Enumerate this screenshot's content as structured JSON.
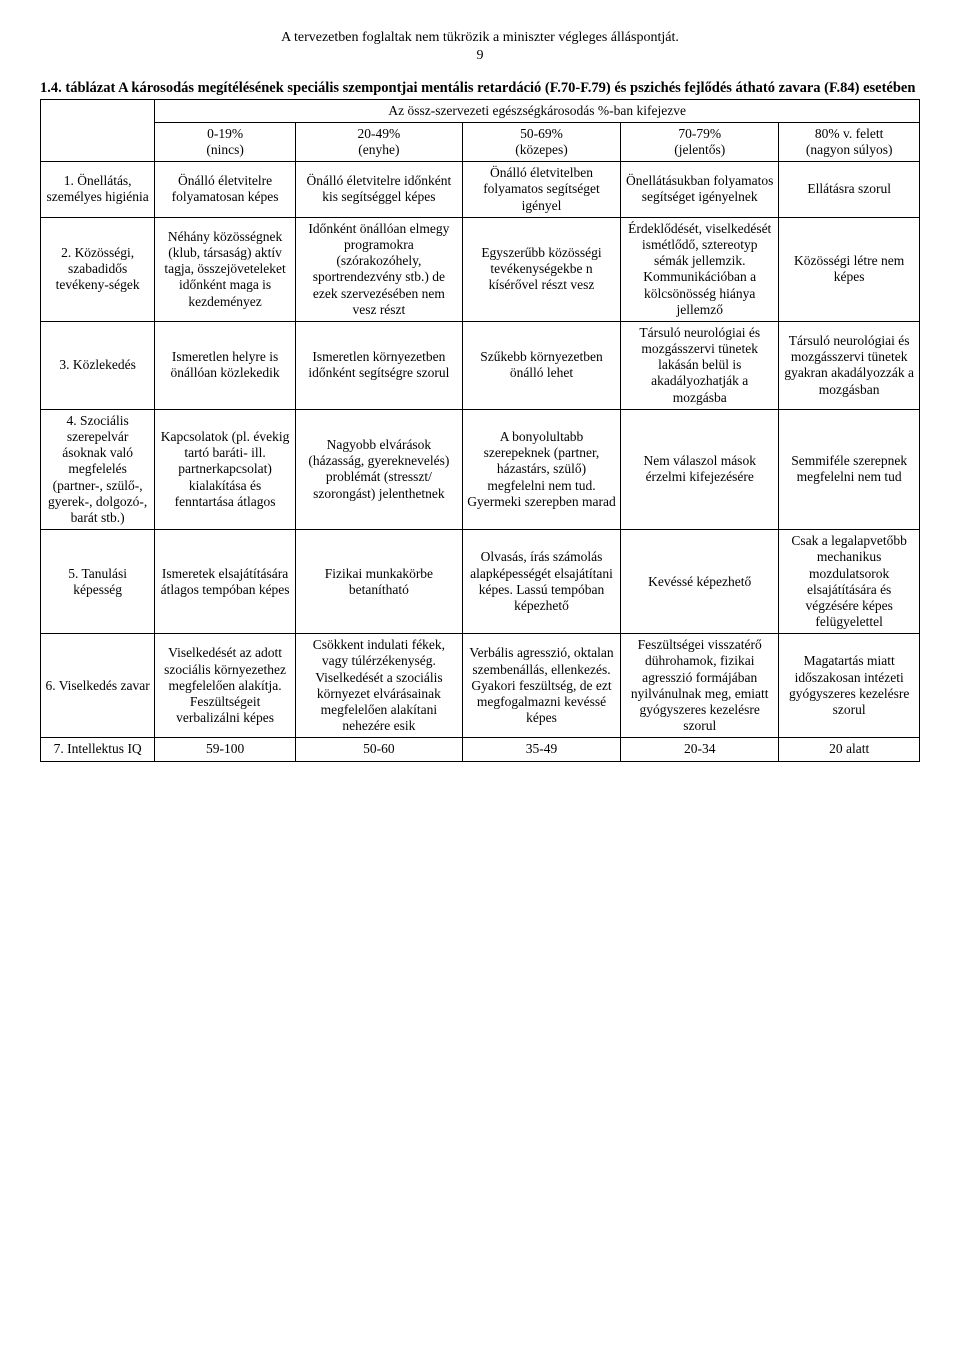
{
  "disclaimer": "A tervezetben foglaltak nem tükrözik a miniszter végleges álláspontját.",
  "page_number": "9",
  "lead_bold": "1.4. táblázat A károsodás megítélésének speciális szempontjai mentális retardáció (F.70-F.79) és pszichés fejlődés átható zavara (F.84) esetében",
  "table": {
    "span_header": "Az össz-szervezeti egészségkárosodás %-ban kifejezve",
    "col_headers": [
      "0-19%\n(nincs)",
      "20-49%\n(enyhe)",
      "50-69%\n(közepes)",
      "70-79%\n(jelentős)",
      "80% v. felett\n(nagyon súlyos)"
    ],
    "rows": [
      {
        "label": "1. Önellátás, személyes higiénia",
        "cells": [
          "Önálló életvitelre folyamatosan képes",
          "Önálló életvitelre időnként kis segítséggel képes",
          "Önálló életvitelben folyamatos segítséget igényel",
          "Önellátásukban folyamatos segítséget igényelnek",
          "Ellátásra szorul"
        ]
      },
      {
        "label": "2. Közösségi, szabadidős tevékeny-ségek",
        "cells": [
          "Néhány közösségnek (klub, társaság) aktív tagja, összejöveteleket időnként maga is kezdeményez",
          "Időnként önállóan elmegy programokra (szórakozóhely, sportrendezvény stb.) de ezek szervezésében nem vesz részt",
          "Egyszerűbb közösségi tevékenységekbe n kísérővel részt vesz",
          "Érdeklődését, viselkedését ismétlődő, sztereotyp sémák jellemzik. Kommunikációban a kölcsönösség hiánya jellemző",
          "Közösségi létre nem képes"
        ]
      },
      {
        "label": "3. Közlekedés",
        "cells": [
          "Ismeretlen helyre is önállóan közlekedik",
          "Ismeretlen környezetben időnként segítségre szorul",
          "Szűkebb környezetben önálló lehet",
          "Társuló neurológiai és mozgásszervi tünetek lakásán belül is akadályozhatják a mozgásba",
          "Társuló neurológiai és mozgásszervi tünetek gyakran akadályozzák a mozgásban"
        ]
      },
      {
        "label": "4. Szociális szerepelvár ásoknak való megfelelés (partner-, szülő-, gyerek-, dolgozó-, barát stb.)",
        "cells": [
          "Kapcsolatok (pl. évekig tartó baráti- ill. partnerkapcsolat) kialakítása és fenntartása átlagos",
          "Nagyobb elvárások (házasság, gyereknevelés) problémát (stresszt/ szorongást) jelenthetnek",
          "A bonyolultabb szerepeknek (partner, házastárs, szülő) megfelelni nem tud. Gyermeki szerepben marad",
          "Nem válaszol mások érzelmi kifejezésére",
          "Semmiféle szerepnek megfelelni nem tud"
        ]
      },
      {
        "label": "5. Tanulási képesség",
        "cells": [
          "Ismeretek elsajátítására átlagos tempóban képes",
          "Fizikai munkakörbe betanítható",
          "Olvasás, írás számolás alapképességét elsajátítani képes. Lassú tempóban képezhető",
          "Kevéssé képezhető",
          "Csak a legalapvetőbb mechanikus mozdulatsorok elsajátítására és végzésére képes felügyelettel"
        ]
      },
      {
        "label": "6. Viselkedés zavar",
        "cells": [
          "Viselkedését az adott szociális környezethez megfelelően alakítja. Feszültségeit verbalizálni képes",
          "Csökkent indulati fékek, vagy túlérzékenység. Viselkedését a szociális környezet elvárásainak megfelelően alakítani nehezére esik",
          "Verbális agresszió, oktalan szembenállás, ellenkezés. Gyakori feszültség, de ezt megfogalmazni kevéssé képes",
          "Feszültségei visszatérő dührohamok, fizikai agresszió formájában nyilvánulnak meg, emiatt gyógyszeres kezelésre szorul",
          "Magatartás miatt időszakosan intézeti gyógyszeres kezelésre szorul"
        ]
      },
      {
        "label": "7. Intellektus IQ",
        "cells": [
          "59-100",
          "50-60",
          "35-49",
          "20-34",
          "20 alatt"
        ]
      }
    ]
  }
}
